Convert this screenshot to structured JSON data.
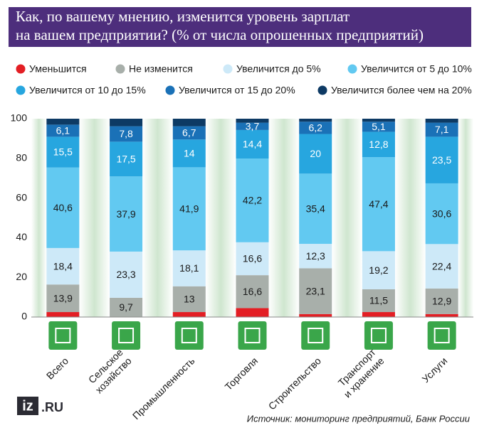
{
  "chart_data": {
    "type": "stacked_bar",
    "title": [
      "Как, по вашему мнению, изменится уровень зарплат",
      "на вашем предприятии? (% от числа опрошенных предприятий)"
    ],
    "categories": [
      [
        "Всего"
      ],
      [
        "Сельское",
        "хозяйство"
      ],
      [
        "Промышленность"
      ],
      [
        "Торговля"
      ],
      [
        "Строительство"
      ],
      [
        "Транспорт",
        "и хранение"
      ],
      [
        "Услуги"
      ]
    ],
    "series": [
      {
        "name": "Уменьшится",
        "color": "#e31e24",
        "values": [
          2.5,
          0,
          2.5,
          4.5,
          1.5,
          2.5,
          1.5
        ]
      },
      {
        "name": "Не изменится",
        "color": "#a8afaa",
        "values": [
          13.9,
          9.7,
          13,
          16.6,
          23.1,
          11.5,
          12.9
        ],
        "value_labels": [
          "13,9",
          "9,7",
          "13",
          "16,6",
          "23,1",
          "11,5",
          "12,9"
        ]
      },
      {
        "name": "Увеличится до 5%",
        "color": "#cde9f8",
        "values": [
          18.4,
          23.3,
          18.1,
          16.6,
          12.3,
          19.2,
          22.4
        ],
        "value_labels": [
          "18,4",
          "23,3",
          "18,1",
          "16,6",
          "12,3",
          "19,2",
          "22,4"
        ]
      },
      {
        "name": "Увеличится от 5 до 10%",
        "color": "#62c9f1",
        "values": [
          40.6,
          37.9,
          41.9,
          42.2,
          35.4,
          47.4,
          30.6
        ],
        "value_labels": [
          "40,6",
          "37,9",
          "41,9",
          "42,2",
          "35,4",
          "47,4",
          "30,6"
        ]
      },
      {
        "name": "Увеличится от 10 до 15%",
        "color": "#27a6df",
        "values": [
          15.5,
          17.5,
          14,
          14.4,
          20,
          12.8,
          23.5
        ],
        "value_labels": [
          "15,5",
          "17,5",
          "14",
          "14,4",
          "20",
          "12,8",
          "23,5"
        ]
      },
      {
        "name": "Увеличится от 15 до 20%",
        "color": "#1a71b7",
        "values": [
          6.1,
          7.8,
          6.7,
          3.7,
          6.2,
          5.1,
          7.1
        ],
        "value_labels": [
          "6,1",
          "7,8",
          "6,7",
          "3,7",
          "6,2",
          "5,1",
          "7,1"
        ]
      },
      {
        "name": "Увеличится более чем на 20%",
        "color": "#0d3a64",
        "values": [
          3,
          3.8,
          3.8,
          2,
          1.5,
          1.5,
          2
        ]
      }
    ],
    "ylim": [
      0,
      100
    ],
    "yticks": [
      0,
      20,
      40,
      60,
      80,
      100
    ],
    "grid": false,
    "source": "Источник: мониторинг предприятий, Банк России",
    "logo": [
      "iz",
      ".RU"
    ]
  }
}
